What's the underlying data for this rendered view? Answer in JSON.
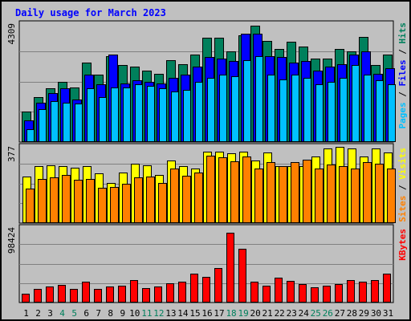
{
  "chart_data": {
    "type": "bar",
    "title": "Daily usage for March 2023",
    "days": [
      "1",
      "2",
      "3",
      "4",
      "5",
      "6",
      "7",
      "8",
      "9",
      "10",
      "11",
      "12",
      "13",
      "14",
      "15",
      "16",
      "17",
      "18",
      "19",
      "20",
      "21",
      "22",
      "23",
      "24",
      "25",
      "26",
      "27",
      "28",
      "29",
      "30",
      "31"
    ],
    "weekend_days": [
      "4",
      "5",
      "11",
      "12",
      "18",
      "19",
      "25",
      "26"
    ],
    "panels": [
      {
        "id": "hits",
        "max_label": "4309",
        "ymax": 4309,
        "legend": [
          "Pages",
          "Files",
          "Hits"
        ],
        "series": [
          {
            "name": "Hits",
            "color": "#00805c",
            "values": [
              1100,
              1650,
              1950,
              2200,
              2000,
              2900,
              2450,
              3150,
              2800,
              2750,
              2600,
              2500,
              3000,
              2850,
              3200,
              3800,
              3800,
              3300,
              3900,
              4250,
              3700,
              3400,
              3650,
              3500,
              3050,
              3050,
              3400,
              3300,
              3850,
              2800,
              3200
            ]
          },
          {
            "name": "Files",
            "color": "#0000ff",
            "values": [
              780,
              1450,
              1800,
              1950,
              1550,
              2450,
              2100,
              3200,
              2150,
              2250,
              2200,
              2150,
              2350,
              2450,
              2750,
              3100,
              3050,
              2950,
              3950,
              3950,
              3150,
              3100,
              2900,
              2950,
              2600,
              2750,
              2850,
              3200,
              3300,
              2500,
              2700
            ]
          },
          {
            "name": "Pages",
            "color": "#00c0ff",
            "values": [
              480,
              1200,
              1500,
              1450,
              1400,
              1950,
              1650,
              2000,
              2000,
              2100,
              2050,
              1950,
              1850,
              1900,
              2200,
              2350,
              2450,
              2400,
              3000,
              3150,
              2450,
              2300,
              2450,
              2350,
              2100,
              2200,
              2350,
              2800,
              2450,
              2250,
              2100
            ]
          }
        ]
      },
      {
        "id": "visits",
        "max_label": "377",
        "ymax": 377,
        "legend": [
          "Sites",
          "Visits"
        ],
        "series": [
          {
            "name": "Visits",
            "color": "#ffff00",
            "values": [
              230,
              280,
              285,
              280,
              275,
              280,
              245,
              200,
              250,
              295,
              285,
              240,
              310,
              280,
              270,
              355,
              355,
              345,
              355,
              310,
              350,
              280,
              280,
              280,
              330,
              370,
              377,
              370,
              330,
              370,
              350
            ]
          },
          {
            "name": "Sites",
            "color": "#ff8000",
            "values": [
              170,
              220,
              225,
              240,
              215,
              220,
              175,
              180,
              195,
              225,
              230,
              200,
              270,
              235,
              250,
              335,
              325,
              305,
              330,
              270,
              300,
              280,
              300,
              315,
              270,
              290,
              280,
              270,
              300,
              295,
              270
            ]
          }
        ]
      },
      {
        "id": "kbytes",
        "max_label": "98424",
        "ymax": 98424,
        "legend": [
          "KBytes"
        ],
        "series": [
          {
            "name": "KBytes",
            "color": "#ff0000",
            "values": [
              12000,
              18000,
              21000,
              23000,
              18000,
              28000,
              18000,
              21000,
              22000,
              30000,
              19000,
              21000,
              25000,
              28000,
              38000,
              34000,
              46000,
              92000,
              71000,
              28000,
              22000,
              33000,
              29000,
              24000,
              20000,
              22000,
              24000,
              30000,
              28000,
              30000,
              38000
            ]
          }
        ]
      }
    ]
  }
}
